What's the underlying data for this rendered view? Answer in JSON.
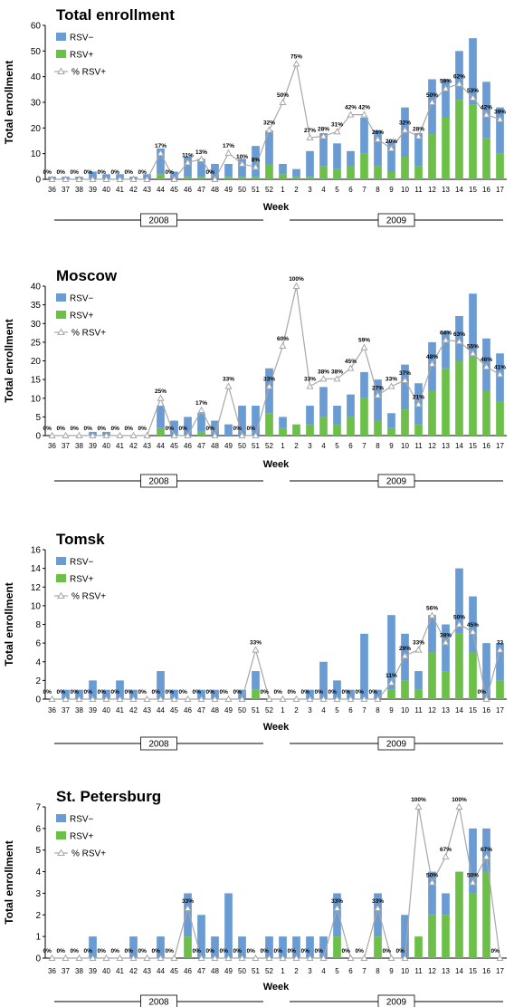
{
  "legend": {
    "neg": "RSV−",
    "pos": "RSV+",
    "pct": "% RSV+",
    "colors": {
      "neg": "#6a9bd2",
      "pos": "#6cc04a",
      "pct": "#a8a8a8"
    }
  },
  "chart_data": [
    {
      "type": "bar",
      "stacked": true,
      "title": "Total enrollment",
      "ylabel": "Total enrollment",
      "xlabel": "Week",
      "ylim": [
        0,
        60
      ],
      "yticks": [
        0,
        10,
        20,
        30,
        40,
        50,
        60
      ],
      "y2lim": [
        0,
        100
      ],
      "legend_position": "top-left",
      "categories": [
        "36",
        "37",
        "38",
        "39",
        "40",
        "41",
        "42",
        "43",
        "44",
        "45",
        "46",
        "47",
        "48",
        "49",
        "50",
        "51",
        "52",
        "1",
        "2",
        "3",
        "4",
        "5",
        "6",
        "7",
        "8",
        "9",
        "10",
        "11",
        "12",
        "13",
        "14",
        "15",
        "16",
        "17"
      ],
      "years": [
        {
          "label": "2008",
          "start": 0,
          "end": 16
        },
        {
          "label": "2009",
          "start": 17,
          "end": 33
        }
      ],
      "series": [
        {
          "name": "RSV−",
          "values": [
            1,
            1,
            1,
            3,
            2,
            2,
            1,
            2,
            10,
            3,
            8,
            7,
            6,
            5,
            7,
            12,
            13,
            4,
            3,
            10,
            13,
            10,
            6,
            14,
            14,
            12,
            19,
            13,
            21,
            15,
            19,
            26,
            22,
            18
          ]
        },
        {
          "name": "RSV+",
          "values": [
            0,
            0,
            0,
            0,
            0,
            0,
            0,
            0,
            2,
            0,
            1,
            1,
            0,
            1,
            1,
            1,
            6,
            2,
            1,
            1,
            5,
            4,
            5,
            10,
            5,
            3,
            9,
            5,
            18,
            24,
            31,
            29,
            16,
            10
          ]
        },
        {
          "name": "% RSV+",
          "values": [
            0,
            0,
            0,
            0,
            0,
            0,
            0,
            0,
            17,
            0,
            11,
            13,
            0,
            17,
            10,
            8,
            32,
            50,
            75,
            27,
            28,
            31,
            42,
            42,
            26,
            20,
            32,
            28,
            50,
            59,
            62,
            53,
            42,
            39
          ]
        }
      ],
      "point_labels": [
        "0%",
        "0%",
        "0%",
        "0%",
        "0%",
        "0%",
        "0%",
        "0%",
        "17%",
        "0%",
        "11%",
        "13%",
        "0%",
        "17%",
        "10%",
        "8%",
        "32%",
        "50%",
        "75%",
        "27%",
        "28%",
        "31%",
        "42%",
        "42%",
        "26%",
        "20%",
        "32%",
        "28%",
        "50%",
        "59%",
        "62%",
        "53%",
        "42%",
        "39%"
      ]
    },
    {
      "type": "bar",
      "stacked": true,
      "title": "Moscow",
      "ylabel": "Total enrollment",
      "xlabel": "Week",
      "ylim": [
        0,
        40
      ],
      "yticks": [
        0,
        5,
        10,
        15,
        20,
        25,
        30,
        35,
        40
      ],
      "y2lim": [
        0,
        100
      ],
      "legend_position": "top-left",
      "categories": [
        "36",
        "37",
        "38",
        "39",
        "40",
        "41",
        "42",
        "43",
        "44",
        "45",
        "46",
        "47",
        "48",
        "49",
        "50",
        "51",
        "52",
        "1",
        "2",
        "3",
        "4",
        "5",
        "6",
        "7",
        "8",
        "9",
        "10",
        "11",
        "12",
        "13",
        "14",
        "15",
        "16",
        "17"
      ],
      "years": [
        {
          "label": "2008",
          "start": 0,
          "end": 16
        },
        {
          "label": "2009",
          "start": 17,
          "end": 33
        }
      ],
      "series": [
        {
          "name": "RSV−",
          "values": [
            0,
            0,
            0,
            1,
            1,
            0,
            0,
            0,
            6,
            4,
            5,
            5,
            4,
            3,
            8,
            8,
            12,
            3,
            0,
            5,
            8,
            5,
            6,
            7,
            11,
            4,
            12,
            11,
            13,
            10,
            12,
            17,
            14,
            13
          ]
        },
        {
          "name": "RSV+",
          "values": [
            0,
            0,
            0,
            0,
            0,
            0,
            0,
            0,
            2,
            0,
            0,
            1,
            0,
            0,
            0,
            0,
            6,
            2,
            3,
            3,
            5,
            3,
            5,
            10,
            4,
            2,
            7,
            3,
            12,
            18,
            20,
            21,
            12,
            9
          ]
        },
        {
          "name": "% RSV+",
          "values": [
            0,
            0,
            0,
            0,
            0,
            0,
            0,
            0,
            25,
            0,
            0,
            17,
            0,
            33,
            0,
            0,
            33,
            60,
            100,
            33,
            38,
            38,
            45,
            59,
            27,
            33,
            37,
            21,
            48,
            64,
            63,
            55,
            46,
            41
          ]
        }
      ],
      "point_labels": [
        "0%",
        "0%",
        "0%",
        "0%",
        "0%",
        "0%",
        "0%",
        "0%",
        "25%",
        "0%",
        "0%",
        "17%",
        "0%",
        "33%",
        "0%",
        "0%",
        "33%",
        "60%",
        "100%",
        "33%",
        "38%",
        "38%",
        "45%",
        "59%",
        "27%",
        "33%",
        "37%",
        "21%",
        "48%",
        "64%",
        "63%",
        "55%",
        "46%",
        "41%"
      ]
    },
    {
      "type": "bar",
      "stacked": true,
      "title": "Tomsk",
      "ylabel": "Total enrollment",
      "xlabel": "Week",
      "ylim": [
        0,
        16
      ],
      "yticks": [
        0,
        2,
        4,
        6,
        8,
        10,
        12,
        14,
        16
      ],
      "y2lim": [
        0,
        100
      ],
      "legend_position": "top-left",
      "categories": [
        "36",
        "37",
        "38",
        "39",
        "40",
        "41",
        "42",
        "43",
        "44",
        "45",
        "46",
        "47",
        "48",
        "49",
        "50",
        "51",
        "52",
        "1",
        "2",
        "3",
        "4",
        "5",
        "6",
        "7",
        "8",
        "9",
        "10",
        "11",
        "12",
        "13",
        "14",
        "15",
        "16",
        "17"
      ],
      "years": [
        {
          "label": "2008",
          "start": 0,
          "end": 16
        },
        {
          "label": "2009",
          "start": 17,
          "end": 33
        }
      ],
      "series": [
        {
          "name": "RSV−",
          "values": [
            0,
            1,
            1,
            2,
            1,
            2,
            1,
            0,
            3,
            1,
            0,
            1,
            1,
            0,
            1,
            2,
            0,
            0,
            0,
            1,
            4,
            2,
            1,
            7,
            1,
            8,
            5,
            2,
            4,
            5,
            7,
            6,
            6,
            4
          ]
        },
        {
          "name": "RSV+",
          "values": [
            0,
            0,
            0,
            0,
            0,
            0,
            0,
            0,
            0,
            0,
            0,
            0,
            0,
            0,
            0,
            1,
            0,
            0,
            0,
            0,
            0,
            0,
            0,
            0,
            0,
            1,
            2,
            1,
            5,
            3,
            7,
            5,
            0,
            2
          ]
        },
        {
          "name": "% RSV+",
          "values": [
            0,
            0,
            0,
            0,
            0,
            0,
            0,
            0,
            0,
            0,
            0,
            0,
            0,
            0,
            0,
            33,
            0,
            0,
            0,
            0,
            0,
            0,
            0,
            0,
            0,
            11,
            29,
            33,
            56,
            38,
            50,
            45,
            0,
            33
          ]
        }
      ],
      "point_labels": [
        "0%",
        "0%",
        "0%",
        "0%",
        "0%",
        "0%",
        "0%",
        "0%",
        "0%",
        "0%",
        "0%",
        "0%",
        "0%",
        "0%",
        "0%",
        "33%",
        "0%",
        "0%",
        "0%",
        "0%",
        "0%",
        "0%",
        "0%",
        "0%",
        "0%",
        "11%",
        "29%",
        "33%",
        "56%",
        "38%",
        "50%",
        "45%",
        "0%",
        "33"
      ]
    },
    {
      "type": "bar",
      "stacked": true,
      "title": "St. Petersburg",
      "ylabel": "Total enrollment",
      "xlabel": "Week",
      "ylim": [
        0,
        7
      ],
      "yticks": [
        0,
        1,
        2,
        3,
        4,
        5,
        6,
        7
      ],
      "y2lim": [
        0,
        100
      ],
      "legend_position": "top-left",
      "categories": [
        "36",
        "37",
        "38",
        "39",
        "40",
        "41",
        "42",
        "43",
        "44",
        "45",
        "46",
        "47",
        "48",
        "49",
        "50",
        "51",
        "52",
        "1",
        "2",
        "3",
        "4",
        "5",
        "6",
        "7",
        "8",
        "9",
        "10",
        "11",
        "12",
        "13",
        "14",
        "15",
        "16",
        "17"
      ],
      "years": [
        {
          "label": "2008",
          "start": 0,
          "end": 16
        },
        {
          "label": "2009",
          "start": 17,
          "end": 33
        }
      ],
      "series": [
        {
          "name": "RSV−",
          "values": [
            0,
            0,
            0,
            1,
            0,
            0,
            1,
            0,
            1,
            0,
            2,
            2,
            1,
            3,
            1,
            0,
            1,
            1,
            1,
            1,
            1,
            2,
            0,
            0,
            2,
            0,
            2,
            0,
            2,
            1,
            0,
            3,
            2,
            0
          ]
        },
        {
          "name": "RSV+",
          "values": [
            0,
            0,
            0,
            0,
            0,
            0,
            0,
            0,
            0,
            0,
            1,
            0,
            0,
            0,
            0,
            0,
            0,
            0,
            0,
            0,
            0,
            1,
            0,
            0,
            1,
            0,
            0,
            1,
            2,
            2,
            4,
            3,
            4,
            0
          ]
        },
        {
          "name": "% RSV+",
          "values": [
            0,
            0,
            0,
            0,
            0,
            0,
            0,
            0,
            0,
            0,
            33,
            0,
            0,
            0,
            0,
            0,
            0,
            0,
            0,
            0,
            0,
            33,
            0,
            0,
            33,
            0,
            0,
            100,
            50,
            67,
            100,
            50,
            67,
            0
          ]
        }
      ],
      "point_labels": [
        "0%",
        "0%",
        "0%",
        "0%",
        "0%",
        "0%",
        "0%",
        "0%",
        "0%",
        "0%",
        "33%",
        "0%",
        "0%",
        "0%",
        "0%",
        "0%",
        "0%",
        "0%",
        "0%",
        "0%",
        "0%",
        "33%",
        "0%",
        "0%",
        "33%",
        "0%",
        "0%",
        "100%",
        "50%",
        "67%",
        "100%",
        "50%",
        "67%",
        "0%"
      ]
    }
  ]
}
